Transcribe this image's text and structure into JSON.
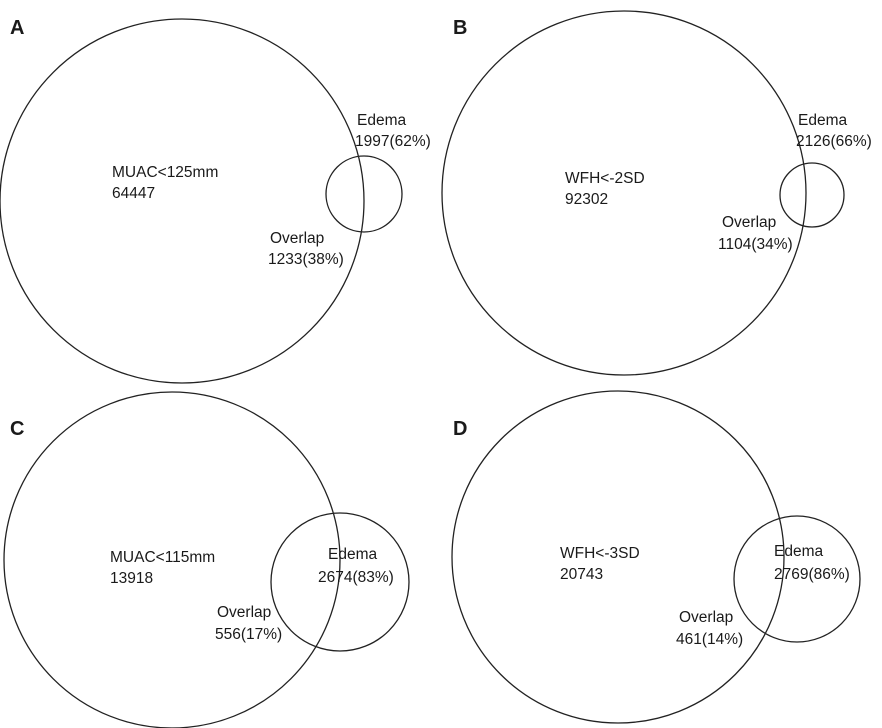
{
  "panels": [
    {
      "letter": "A",
      "main_label": "MUAC<125mm",
      "main_count": "64447",
      "edema_label": "Edema",
      "edema_value": "1997(62%)",
      "overlap_label": "Overlap",
      "overlap_value": "1233(38%)"
    },
    {
      "letter": "B",
      "main_label": "WFH<-2SD",
      "main_count": "92302",
      "edema_label": "Edema",
      "edema_value": "2126(66%)",
      "overlap_label": "Overlap",
      "overlap_value": "1104(34%)"
    },
    {
      "letter": "C",
      "main_label": "MUAC<115mm",
      "main_count": "13918",
      "edema_label": "Edema",
      "edema_value": "2674(83%)",
      "overlap_label": "Overlap",
      "overlap_value": "556(17%)"
    },
    {
      "letter": "D",
      "main_label": "WFH<-3SD",
      "main_count": "20743",
      "edema_label": "Edema",
      "edema_value": "2769(86%)",
      "overlap_label": "Overlap",
      "overlap_value": "461(14%)"
    }
  ]
}
